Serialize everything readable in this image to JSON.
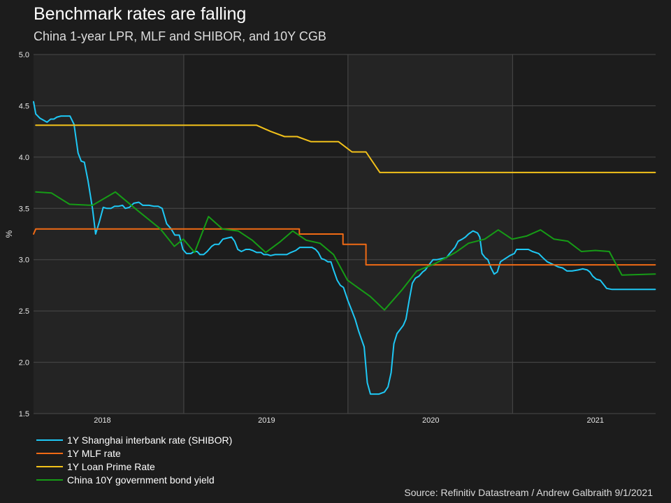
{
  "title": "Benchmark rates are falling",
  "subtitle": "China 1-year LPR, MLF and SHIBOR, and 10Y CGB",
  "source": "Source: Refinitiv Datastream / Andrew Galbraith 9/1/2021",
  "colors": {
    "background": "#1c1c1c",
    "plot_shade": "#242424",
    "grid": "#4a4a4a",
    "axis_text": "#e6e6e6"
  },
  "chart_data": {
    "type": "line",
    "xlabel": "",
    "ylabel": "%",
    "xlim": [
      "2017-08-01",
      "2021-05-15"
    ],
    "ylim": [
      1.5,
      5.0
    ],
    "yticks": [
      1.5,
      2.0,
      2.5,
      3.0,
      3.5,
      4.0,
      4.5,
      5.0
    ],
    "ytick_labels": [
      "1.5",
      "2.0",
      "2.5",
      "3.0",
      "3.5",
      "4.0",
      "4.5",
      "5.0"
    ],
    "year_labels": [
      {
        "label": "2018",
        "at": "2018-01-01"
      },
      {
        "label": "2019",
        "at": "2019-01-01"
      },
      {
        "label": "2020",
        "at": "2020-01-01"
      },
      {
        "label": "2021",
        "at": "2021-01-01"
      }
    ],
    "year_boundaries": [
      "2018-07-01",
      "2019-07-01",
      "2020-07-01"
    ],
    "grid": true,
    "legend_position": "bottom-left",
    "series": [
      {
        "name": "1Y Shanghai interbank rate (SHIBOR)",
        "color": "#1ec8f5",
        "points": [
          [
            "2017-08-01",
            4.54
          ],
          [
            "2017-08-06",
            4.42
          ],
          [
            "2017-08-15",
            4.38
          ],
          [
            "2017-08-31",
            4.34
          ],
          [
            "2017-09-08",
            4.37
          ],
          [
            "2017-09-15",
            4.37
          ],
          [
            "2017-09-22",
            4.39
          ],
          [
            "2017-10-01",
            4.4
          ],
          [
            "2017-10-21",
            4.4
          ],
          [
            "2017-10-30",
            4.32
          ],
          [
            "2017-11-08",
            4.04
          ],
          [
            "2017-11-15",
            3.96
          ],
          [
            "2017-11-22",
            3.95
          ],
          [
            "2017-11-30",
            3.77
          ],
          [
            "2017-12-10",
            3.5
          ],
          [
            "2017-12-17",
            3.25
          ],
          [
            "2017-12-26",
            3.38
          ],
          [
            "2018-01-03",
            3.51
          ],
          [
            "2018-01-11",
            3.5
          ],
          [
            "2018-01-20",
            3.5
          ],
          [
            "2018-01-28",
            3.52
          ],
          [
            "2018-02-05",
            3.52
          ],
          [
            "2018-02-15",
            3.53
          ],
          [
            "2018-02-21",
            3.5
          ],
          [
            "2018-03-02",
            3.51
          ],
          [
            "2018-03-12",
            3.55
          ],
          [
            "2018-03-23",
            3.56
          ],
          [
            "2018-04-01",
            3.53
          ],
          [
            "2018-04-15",
            3.53
          ],
          [
            "2018-04-26",
            3.52
          ],
          [
            "2018-05-05",
            3.52
          ],
          [
            "2018-05-14",
            3.5
          ],
          [
            "2018-05-24",
            3.35
          ],
          [
            "2018-06-03",
            3.3
          ],
          [
            "2018-06-11",
            3.24
          ],
          [
            "2018-06-21",
            3.24
          ],
          [
            "2018-06-29",
            3.1
          ],
          [
            "2018-07-07",
            3.06
          ],
          [
            "2018-07-17",
            3.06
          ],
          [
            "2018-07-24",
            3.08
          ],
          [
            "2018-07-31",
            3.08
          ],
          [
            "2018-08-06",
            3.05
          ],
          [
            "2018-08-14",
            3.05
          ],
          [
            "2018-08-22",
            3.08
          ],
          [
            "2018-09-01",
            3.13
          ],
          [
            "2018-09-08",
            3.15
          ],
          [
            "2018-09-17",
            3.15
          ],
          [
            "2018-09-26",
            3.2
          ],
          [
            "2018-10-05",
            3.21
          ],
          [
            "2018-10-15",
            3.22
          ],
          [
            "2018-10-22",
            3.18
          ],
          [
            "2018-10-29",
            3.1
          ],
          [
            "2018-11-06",
            3.08
          ],
          [
            "2018-11-16",
            3.1
          ],
          [
            "2018-11-24",
            3.1
          ],
          [
            "2018-12-01",
            3.09
          ],
          [
            "2018-12-10",
            3.07
          ],
          [
            "2018-12-20",
            3.07
          ],
          [
            "2018-12-26",
            3.05
          ],
          [
            "2019-01-03",
            3.05
          ],
          [
            "2019-01-10",
            3.04
          ],
          [
            "2019-01-20",
            3.05
          ],
          [
            "2019-01-28",
            3.05
          ],
          [
            "2019-02-05",
            3.05
          ],
          [
            "2019-02-15",
            3.05
          ],
          [
            "2019-02-24",
            3.07
          ],
          [
            "2019-03-07",
            3.09
          ],
          [
            "2019-03-16",
            3.12
          ],
          [
            "2019-03-24",
            3.12
          ],
          [
            "2019-04-03",
            3.12
          ],
          [
            "2019-04-12",
            3.12
          ],
          [
            "2019-04-20",
            3.1
          ],
          [
            "2019-04-26",
            3.07
          ],
          [
            "2019-05-03",
            3.01
          ],
          [
            "2019-05-10",
            3.0
          ],
          [
            "2019-05-17",
            2.98
          ],
          [
            "2019-05-24",
            2.98
          ],
          [
            "2019-05-30",
            2.9
          ],
          [
            "2019-06-07",
            2.8
          ],
          [
            "2019-06-14",
            2.75
          ],
          [
            "2019-06-21",
            2.73
          ],
          [
            "2019-07-01",
            2.6
          ],
          [
            "2019-07-10",
            2.5
          ],
          [
            "2019-07-17",
            2.42
          ],
          [
            "2019-07-25",
            2.3
          ],
          [
            "2019-08-06",
            2.15
          ],
          [
            "2019-08-13",
            1.8
          ],
          [
            "2019-08-20",
            1.69
          ],
          [
            "2019-09-08",
            1.69
          ],
          [
            "2019-09-20",
            1.71
          ],
          [
            "2019-09-28",
            1.76
          ],
          [
            "2019-10-05",
            1.9
          ],
          [
            "2019-10-11",
            2.18
          ],
          [
            "2019-10-18",
            2.28
          ],
          [
            "2019-10-25",
            2.32
          ],
          [
            "2019-11-01",
            2.36
          ],
          [
            "2019-11-07",
            2.42
          ],
          [
            "2019-11-14",
            2.6
          ],
          [
            "2019-11-21",
            2.77
          ],
          [
            "2019-11-28",
            2.82
          ],
          [
            "2019-12-06",
            2.84
          ],
          [
            "2019-12-14",
            2.88
          ],
          [
            "2019-12-20",
            2.9
          ],
          [
            "2019-12-28",
            2.95
          ],
          [
            "2020-01-06",
            3.0
          ],
          [
            "2020-01-15",
            3.0
          ],
          [
            "2020-01-25",
            3.01
          ],
          [
            "2020-02-05",
            3.02
          ],
          [
            "2020-02-12",
            3.06
          ],
          [
            "2020-02-24",
            3.12
          ],
          [
            "2020-03-02",
            3.18
          ],
          [
            "2020-03-11",
            3.2
          ],
          [
            "2020-03-18",
            3.22
          ],
          [
            "2020-03-25",
            3.25
          ],
          [
            "2020-04-04",
            3.28
          ],
          [
            "2020-04-14",
            3.26
          ],
          [
            "2020-04-19",
            3.22
          ],
          [
            "2020-04-24",
            3.06
          ],
          [
            "2020-05-01",
            3.02
          ],
          [
            "2020-05-07",
            3.0
          ],
          [
            "2020-05-14",
            2.92
          ],
          [
            "2020-05-21",
            2.86
          ],
          [
            "2020-05-28",
            2.88
          ],
          [
            "2020-06-04",
            2.98
          ],
          [
            "2020-06-11",
            3.0
          ],
          [
            "2020-06-18",
            3.02
          ],
          [
            "2020-06-25",
            3.04
          ],
          [
            "2020-07-05",
            3.06
          ],
          [
            "2020-07-10",
            3.1
          ],
          [
            "2020-08-05",
            3.1
          ],
          [
            "2020-08-14",
            3.08
          ],
          [
            "2020-08-28",
            3.06
          ],
          [
            "2020-09-06",
            3.02
          ],
          [
            "2020-09-16",
            2.98
          ],
          [
            "2020-10-01",
            2.95
          ],
          [
            "2020-10-10",
            2.93
          ],
          [
            "2020-10-20",
            2.92
          ],
          [
            "2020-10-30",
            2.89
          ],
          [
            "2020-11-10",
            2.89
          ],
          [
            "2020-11-24",
            2.9
          ],
          [
            "2020-12-04",
            2.91
          ],
          [
            "2020-12-14",
            2.9
          ],
          [
            "2020-12-20",
            2.88
          ],
          [
            "2020-12-26",
            2.84
          ],
          [
            "2021-01-03",
            2.81
          ],
          [
            "2021-01-12",
            2.8
          ],
          [
            "2021-01-19",
            2.76
          ],
          [
            "2021-01-26",
            2.72
          ],
          [
            "2021-02-07",
            2.71
          ],
          [
            "2021-05-14",
            2.71
          ]
        ]
      },
      {
        "name": "1Y MLF rate",
        "color": "#f06a14",
        "points": [
          [
            "2017-08-01",
            3.25
          ],
          [
            "2017-08-06",
            3.3
          ],
          [
            "2019-03-15",
            3.3
          ],
          [
            "2019-03-15",
            3.25
          ],
          [
            "2019-06-20",
            3.25
          ],
          [
            "2019-06-20",
            3.15
          ],
          [
            "2019-08-10",
            3.15
          ],
          [
            "2019-08-10",
            2.95
          ],
          [
            "2021-05-14",
            2.95
          ]
        ]
      },
      {
        "name": "1Y Loan Prime Rate",
        "color": "#f2c11a",
        "points": [
          [
            "2017-08-06",
            4.31
          ],
          [
            "2018-12-10",
            4.31
          ],
          [
            "2019-01-10",
            4.25
          ],
          [
            "2019-02-10",
            4.2
          ],
          [
            "2019-03-10",
            4.2
          ],
          [
            "2019-04-10",
            4.15
          ],
          [
            "2019-06-10",
            4.15
          ],
          [
            "2019-07-10",
            4.05
          ],
          [
            "2019-08-10",
            4.05
          ],
          [
            "2019-09-10",
            3.85
          ],
          [
            "2021-05-14",
            3.85
          ]
        ]
      },
      {
        "name": "China 10Y government bond yield",
        "color": "#169c16",
        "points": [
          [
            "2017-08-06",
            3.66
          ],
          [
            "2017-09-10",
            3.65
          ],
          [
            "2017-10-20",
            3.54
          ],
          [
            "2017-12-10",
            3.53
          ],
          [
            "2018-01-30",
            3.66
          ],
          [
            "2018-03-20",
            3.48
          ],
          [
            "2018-05-10",
            3.3
          ],
          [
            "2018-06-10",
            3.13
          ],
          [
            "2018-06-30",
            3.2
          ],
          [
            "2018-07-25",
            3.07
          ],
          [
            "2018-08-25",
            3.42
          ],
          [
            "2018-09-25",
            3.3
          ],
          [
            "2018-10-30",
            3.28
          ],
          [
            "2018-11-30",
            3.19
          ],
          [
            "2018-12-30",
            3.07
          ],
          [
            "2019-01-30",
            3.17
          ],
          [
            "2019-02-28",
            3.28
          ],
          [
            "2019-03-30",
            3.19
          ],
          [
            "2019-04-30",
            3.16
          ],
          [
            "2019-05-30",
            3.05
          ],
          [
            "2019-06-30",
            2.8
          ],
          [
            "2019-08-20",
            2.64
          ],
          [
            "2019-09-20",
            2.51
          ],
          [
            "2019-10-30",
            2.71
          ],
          [
            "2019-12-01",
            2.89
          ],
          [
            "2020-01-10",
            2.96
          ],
          [
            "2020-02-25",
            3.07
          ],
          [
            "2020-03-25",
            3.16
          ],
          [
            "2020-04-30",
            3.2
          ],
          [
            "2020-05-30",
            3.29
          ],
          [
            "2020-06-30",
            3.2
          ],
          [
            "2020-08-01",
            3.23
          ],
          [
            "2020-09-01",
            3.29
          ],
          [
            "2020-10-01",
            3.2
          ],
          [
            "2020-11-01",
            3.18
          ],
          [
            "2020-12-01",
            3.08
          ],
          [
            "2021-01-01",
            3.09
          ],
          [
            "2021-02-01",
            3.08
          ],
          [
            "2021-03-01",
            2.85
          ],
          [
            "2021-05-14",
            2.86
          ]
        ]
      }
    ]
  }
}
